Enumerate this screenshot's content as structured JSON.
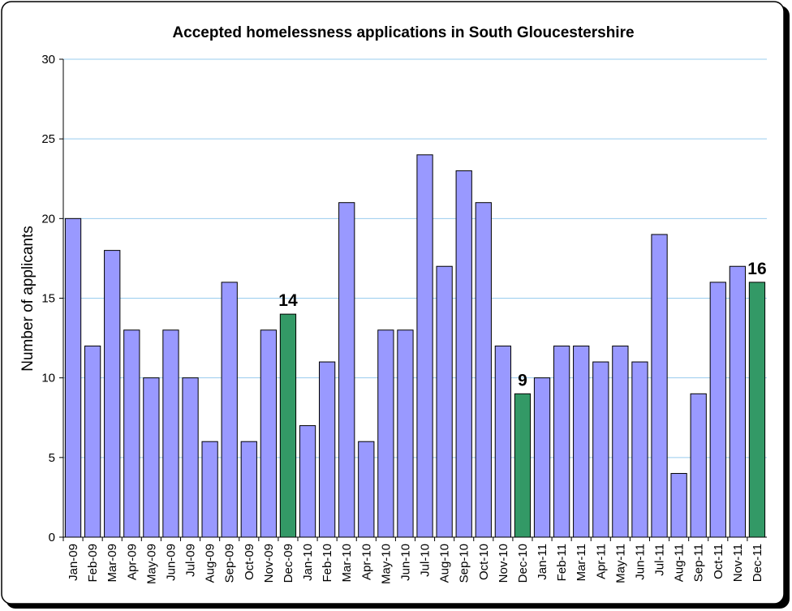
{
  "chart_data": {
    "type": "bar",
    "title": "Accepted homelessness applications in South Gloucestershire",
    "y_label": "Number of applicants",
    "categories": [
      "Jan-09",
      "Feb-09",
      "Mar-09",
      "Apr-09",
      "May-09",
      "Jun-09",
      "Jul-09",
      "Aug-09",
      "Sep-09",
      "Oct-09",
      "Nov-09",
      "Dec-09",
      "Jan-10",
      "Feb-10",
      "Mar-10",
      "Apr-10",
      "May-10",
      "Jun-10",
      "Jul-10",
      "Aug-10",
      "Sep-10",
      "Oct-10",
      "Nov-10",
      "Dec-10",
      "Jan-11",
      "Feb-11",
      "Mar-11",
      "Apr-11",
      "May-11",
      "Jun-11",
      "Jul-11",
      "Aug-11",
      "Sep-11",
      "Oct-11",
      "Nov-11",
      "Dec-11"
    ],
    "values": [
      20,
      12,
      18,
      13,
      10,
      13,
      10,
      6,
      16,
      6,
      13,
      14,
      7,
      11,
      21,
      6,
      13,
      13,
      24,
      17,
      23,
      21,
      12,
      9,
      10,
      12,
      12,
      11,
      12,
      11,
      19,
      4,
      9,
      16,
      17,
      16
    ],
    "value_labels": [
      null,
      null,
      null,
      null,
      null,
      null,
      null,
      null,
      null,
      null,
      null,
      "14",
      null,
      null,
      null,
      null,
      null,
      null,
      null,
      null,
      null,
      null,
      null,
      "9",
      null,
      null,
      null,
      null,
      null,
      null,
      null,
      null,
      null,
      null,
      null,
      "16"
    ],
    "colors": [
      "#9999ff",
      "#9999ff",
      "#9999ff",
      "#9999ff",
      "#9999ff",
      "#9999ff",
      "#9999ff",
      "#9999ff",
      "#9999ff",
      "#9999ff",
      "#9999ff",
      "#339966",
      "#9999ff",
      "#9999ff",
      "#9999ff",
      "#9999ff",
      "#9999ff",
      "#9999ff",
      "#9999ff",
      "#9999ff",
      "#9999ff",
      "#9999ff",
      "#9999ff",
      "#339966",
      "#9999ff",
      "#9999ff",
      "#9999ff",
      "#9999ff",
      "#9999ff",
      "#9999ff",
      "#9999ff",
      "#9999ff",
      "#9999ff",
      "#9999ff",
      "#9999ff",
      "#339966"
    ],
    "ylim": [
      0,
      30
    ],
    "yticks": [
      0,
      5,
      10,
      15,
      20,
      25,
      30
    ],
    "grid": true
  }
}
